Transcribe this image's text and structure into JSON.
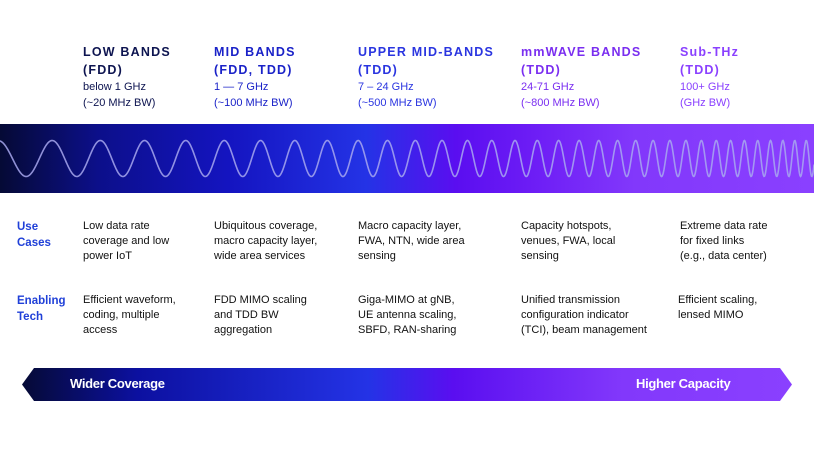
{
  "bands": [
    {
      "title1": "LOW BANDS",
      "title2": "(FDD)",
      "range": "below 1 GHz",
      "bw": "(~20 MHz BW)",
      "color": "#0d1450"
    },
    {
      "title1": "MID BANDS",
      "title2": "(FDD, TDD)",
      "range": "1 — 7 GHz",
      "bw": "(~100 MHz BW)",
      "color": "#1a22c8"
    },
    {
      "title1": "UPPER MID-BANDS",
      "title2": "(TDD)",
      "range": "7 – 24 GHz",
      "bw": "(~500 MHz BW)",
      "color": "#2a35e0"
    },
    {
      "title1": "mmWAVE BANDS",
      "title2": "(TDD)",
      "range": "24-71 GHz",
      "bw": "(~800 MHz BW)",
      "color": "#7a2ef0"
    },
    {
      "title1": "Sub-THz",
      "title2": " (TDD)",
      "range": "100+ GHz",
      "bw": "(GHz BW)",
      "color": "#8a40ff"
    }
  ],
  "rows": [
    {
      "label1": "Use",
      "label2": "Cases",
      "cells": [
        [
          "Low data rate",
          "coverage and low",
          "power IoT"
        ],
        [
          "Ubiquitous coverage,",
          "macro capacity layer,",
          "wide area services"
        ],
        [
          "Macro capacity layer,",
          "FWA, NTN, wide area",
          "sensing"
        ],
        [
          "Capacity hotspots,",
          "venues, FWA, local",
          "sensing"
        ],
        [
          "Extreme data rate",
          "for fixed links",
          "(e.g., data center)"
        ]
      ]
    },
    {
      "label1": "Enabling",
      "label2": "Tech",
      "cells": [
        [
          "Efficient waveform,",
          "coding, multiple",
          "access"
        ],
        [
          "FDD MIMO scaling",
          "and TDD BW",
          "aggregation"
        ],
        [
          "Giga-MIMO at gNB,",
          "UE antenna scaling,",
          "SBFD, RAN-sharing"
        ],
        [
          "Unified transmission",
          "configuration indicator",
          "(TCI), beam management"
        ],
        [
          "Efficient scaling,",
          "lensed MIMO"
        ]
      ]
    }
  ],
  "arrow": {
    "left": "Wider Coverage",
    "right": "Higher Capacity"
  }
}
